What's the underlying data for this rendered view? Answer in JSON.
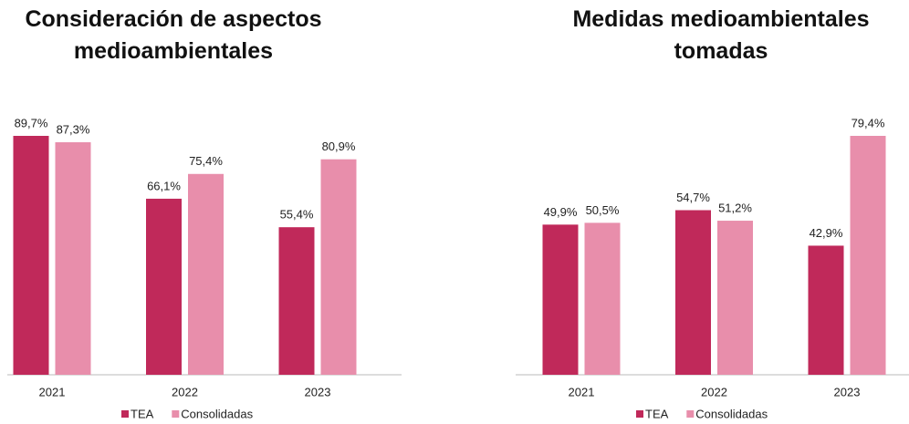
{
  "chart_data": [
    {
      "type": "bar",
      "title": "Consideración de aspectos medioambientales",
      "categories": [
        "2021",
        "2022",
        "2023"
      ],
      "series": [
        {
          "name": "TEA",
          "color": "#c0295a",
          "values": [
            89.7,
            66.1,
            55.4
          ],
          "value_labels": [
            "89,7%",
            "66,1%",
            "55,4%"
          ]
        },
        {
          "name": "Consolidadas",
          "color": "#e88eab",
          "values": [
            87.3,
            75.4,
            80.9
          ],
          "value_labels": [
            "87,3%",
            "75,4%",
            "80,9%"
          ]
        }
      ]
    },
    {
      "type": "bar",
      "title": "Medidas medioambientales tomadas",
      "categories": [
        "2021",
        "2022",
        "2023"
      ],
      "series": [
        {
          "name": "TEA",
          "color": "#c0295a",
          "values": [
            49.9,
            54.7,
            42.9
          ],
          "value_labels": [
            "49,9%",
            "54,7%",
            "42,9%"
          ]
        },
        {
          "name": "Consolidadas",
          "color": "#e88eab",
          "values": [
            50.5,
            51.2,
            79.4
          ],
          "value_labels": [
            "50,5%",
            "51,2%",
            "79,4%"
          ]
        }
      ]
    }
  ]
}
